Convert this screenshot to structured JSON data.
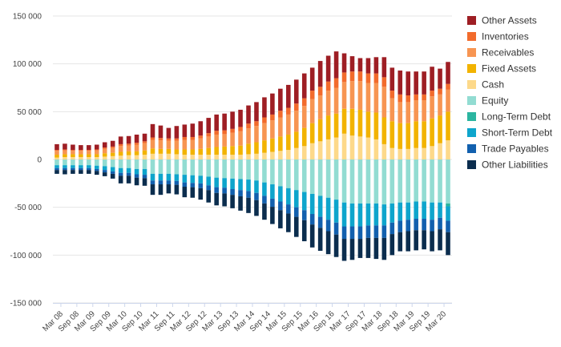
{
  "chart_data": {
    "type": "bar",
    "stacked": true,
    "grid": true,
    "legend_position": "right",
    "ylim": [
      -150000,
      150000
    ],
    "y_ticks": [
      150000,
      100000,
      50000,
      0,
      -50000,
      -100000,
      -150000
    ],
    "y_tick_labels": [
      "150 000",
      "100 000",
      "50 000",
      "0",
      "-50 000",
      "-100 000",
      "-150 000"
    ],
    "x_tick_labels": [
      "Mar 08",
      "Sep 08",
      "Mar 09",
      "Sep 09",
      "Mar 10",
      "Sep 10",
      "Mar 11",
      "Sep 11",
      "Mar 12",
      "Sep 12",
      "Mar 13",
      "Sep 13",
      "Mar 14",
      "Sep 14",
      "Mar 15",
      "Sep 15",
      "Mar 16",
      "Sep 16",
      "Mar 17",
      "Sep 17",
      "Mar 18",
      "Sep 18",
      "Mar 19",
      "Sep 19",
      "Mar 20"
    ],
    "x": [
      "Mar 08",
      "Jun 08",
      "Sep 08",
      "Dec 08",
      "Mar 09",
      "Jun 09",
      "Sep 09",
      "Dec 09",
      "Mar 10",
      "Jun 10",
      "Sep 10",
      "Dec 10",
      "Mar 11",
      "Jun 11",
      "Sep 11",
      "Dec 11",
      "Mar 12",
      "Jun 12",
      "Sep 12",
      "Dec 12",
      "Mar 13",
      "Jun 13",
      "Sep 13",
      "Dec 13",
      "Mar 14",
      "Jun 14",
      "Sep 14",
      "Dec 14",
      "Mar 15",
      "Jun 15",
      "Sep 15",
      "Dec 15",
      "Mar 16",
      "Jun 16",
      "Sep 16",
      "Dec 16",
      "Mar 17",
      "Jun 17",
      "Sep 17",
      "Dec 17",
      "Mar 18",
      "Jun 18",
      "Sep 18",
      "Dec 18",
      "Mar 19",
      "Jun 19",
      "Sep 19",
      "Dec 19",
      "Mar 20",
      "Jun 20"
    ],
    "positive_series": [
      {
        "name": "Cash",
        "color": "#FDD98A",
        "values": [
          2000,
          2500,
          2500,
          2500,
          2500,
          2500,
          3000,
          3500,
          4000,
          4500,
          4500,
          5000,
          6000,
          6000,
          6000,
          5500,
          5000,
          5000,
          5000,
          5000,
          5000,
          5000,
          5000,
          5000,
          5500,
          6000,
          7000,
          8000,
          9000,
          10000,
          12000,
          14000,
          17000,
          19000,
          21000,
          23000,
          27000,
          25000,
          24000,
          23000,
          21000,
          16000,
          12000,
          11000,
          11000,
          12000,
          12000,
          14000,
          17000,
          20000
        ]
      },
      {
        "name": "Fixed Assets",
        "color": "#F2B300",
        "values": [
          3000,
          3000,
          3000,
          3000,
          3000,
          3000,
          3500,
          3500,
          4000,
          4000,
          4000,
          4500,
          5500,
          5000,
          5000,
          5000,
          5500,
          5500,
          6000,
          7000,
          8000,
          8500,
          9000,
          9500,
          11000,
          12000,
          13000,
          14000,
          15000,
          16000,
          17000,
          19000,
          21000,
          23000,
          25000,
          25000,
          26000,
          28000,
          28000,
          27000,
          28000,
          28000,
          28000,
          27000,
          27000,
          28000,
          28000,
          29000,
          29000,
          30000
        ]
      },
      {
        "name": "Receivables",
        "color": "#F79552",
        "values": [
          4000,
          4000,
          3500,
          3500,
          3500,
          4000,
          4500,
          5000,
          6000,
          6000,
          7000,
          7500,
          9000,
          9000,
          8500,
          9000,
          10000,
          10000,
          11000,
          12000,
          13000,
          13000,
          14000,
          15000,
          16000,
          17000,
          18000,
          19000,
          20000,
          21000,
          22000,
          23000,
          25000,
          25000,
          26000,
          27000,
          28000,
          29000,
          30000,
          30000,
          31000,
          32000,
          24000,
          22000,
          22000,
          22000,
          22000,
          23000,
          22000,
          23000
        ]
      },
      {
        "name": "Inventories",
        "color": "#F26B2C",
        "values": [
          1000,
          1000,
          1000,
          1000,
          1000,
          1000,
          1500,
          1500,
          2000,
          2000,
          2000,
          2000,
          2500,
          2500,
          2500,
          2500,
          3000,
          3000,
          3000,
          3500,
          4000,
          4000,
          4000,
          4500,
          5000,
          5000,
          6000,
          6000,
          7000,
          7000,
          7500,
          8000,
          9000,
          9000,
          9500,
          10000,
          10000,
          10000,
          10000,
          10000,
          10000,
          10000,
          8000,
          8000,
          7000,
          6000,
          6000,
          6000,
          6000,
          6000
        ]
      },
      {
        "name": "Other Assets",
        "color": "#9E1E24",
        "values": [
          6000,
          6000,
          5500,
          5000,
          5000,
          5000,
          5500,
          6000,
          8000,
          8000,
          8500,
          8000,
          14000,
          13000,
          11000,
          13000,
          13000,
          14000,
          15000,
          16000,
          17000,
          17500,
          18000,
          18000,
          19000,
          20000,
          21000,
          22000,
          23000,
          24000,
          25000,
          26000,
          24000,
          27000,
          27000,
          28000,
          20000,
          16000,
          14000,
          16000,
          17000,
          21000,
          24000,
          25000,
          25000,
          24000,
          24000,
          25000,
          21000,
          23000
        ]
      }
    ],
    "negative_series": [
      {
        "name": "Equity",
        "color": "#92DCD2",
        "values": [
          -6000,
          -6000,
          -6000,
          -6000,
          -6000,
          -6500,
          -7000,
          -8000,
          -9000,
          -9000,
          -10000,
          -10000,
          -15000,
          -15000,
          -15000,
          -15500,
          -16000,
          -16500,
          -17000,
          -18000,
          -19000,
          -19500,
          -20000,
          -20500,
          -21000,
          -22000,
          -24000,
          -26000,
          -28000,
          -30000,
          -32000,
          -34000,
          -36000,
          -38000,
          -40000,
          -42000,
          -45000,
          -46000,
          -46000,
          -46000,
          -46000,
          -47000,
          -46000,
          -45000,
          -45000,
          -44000,
          -44000,
          -45000,
          -45000,
          -46000
        ]
      },
      {
        "name": "Long-Term Debt",
        "color": "#2BB5A0",
        "values": [
          0,
          0,
          0,
          0,
          0,
          0,
          0,
          0,
          0,
          0,
          0,
          0,
          0,
          0,
          0,
          0,
          0,
          0,
          0,
          0,
          0,
          0,
          0,
          0,
          0,
          0,
          0,
          0,
          0,
          0,
          0,
          0,
          0,
          0,
          0,
          0,
          0,
          0,
          0,
          0,
          0,
          0,
          0,
          0,
          0,
          0,
          0,
          0,
          0,
          -3000
        ]
      },
      {
        "name": "Short-Term Debt",
        "color": "#0EA5CC",
        "values": [
          -3000,
          -3000,
          -3000,
          -3000,
          -3000,
          -3500,
          -4000,
          -4500,
          -5000,
          -5000,
          -5500,
          -6000,
          -7000,
          -7000,
          -7000,
          -7000,
          -8000,
          -8000,
          -8000,
          -9000,
          -10000,
          -10000,
          -11000,
          -11500,
          -12000,
          -13000,
          -14000,
          -15000,
          -16000,
          -17000,
          -18000,
          -19000,
          -21000,
          -22000,
          -23000,
          -24000,
          -25000,
          -24000,
          -24000,
          -23000,
          -23000,
          -22000,
          -20000,
          -19000,
          -18000,
          -18000,
          -18000,
          -18000,
          -16000,
          -15000
        ]
      },
      {
        "name": "Trade Payables",
        "color": "#1260AE",
        "values": [
          -2000,
          -2000,
          -2000,
          -2000,
          -2000,
          -2000,
          -2500,
          -2500,
          -3000,
          -3000,
          -3500,
          -3500,
          -4000,
          -4000,
          -4000,
          -4000,
          -4500,
          -4500,
          -5000,
          -5000,
          -6000,
          -6000,
          -6000,
          -6500,
          -7000,
          -7500,
          -8000,
          -8500,
          -9000,
          -9500,
          -10000,
          -10500,
          -11000,
          -11500,
          -12000,
          -12500,
          -13000,
          -13000,
          -13000,
          -13000,
          -13000,
          -13000,
          -12000,
          -12000,
          -12000,
          -12000,
          -12000,
          -12000,
          -12000,
          -12000
        ]
      },
      {
        "name": "Other Liabilities",
        "color": "#0B2D4E",
        "values": [
          -4000,
          -4500,
          -4000,
          -4000,
          -4000,
          -4000,
          -4000,
          -5000,
          -8000,
          -8000,
          -8000,
          -8000,
          -11000,
          -11000,
          -9500,
          -10000,
          -11000,
          -11000,
          -12000,
          -13000,
          -13000,
          -13500,
          -14000,
          -15000,
          -16000,
          -16500,
          -17000,
          -18000,
          -19000,
          -19500,
          -21000,
          -22000,
          -24000,
          -24000,
          -24000,
          -23500,
          -23000,
          -22000,
          -20000,
          -21000,
          -22000,
          -23000,
          -22000,
          -20000,
          -21000,
          -21000,
          -20000,
          -21000,
          -22000,
          -24000
        ]
      }
    ],
    "legend_order": [
      "Other Assets",
      "Inventories",
      "Receivables",
      "Fixed Assets",
      "Cash",
      "Equity",
      "Long-Term Debt",
      "Short-Term Debt",
      "Trade Payables",
      "Other Liabilities"
    ],
    "axis_colors": {
      "grid": "#E6E6E6",
      "tick_text": "#444444",
      "x_axis_line": "#CCD6EB"
    }
  }
}
